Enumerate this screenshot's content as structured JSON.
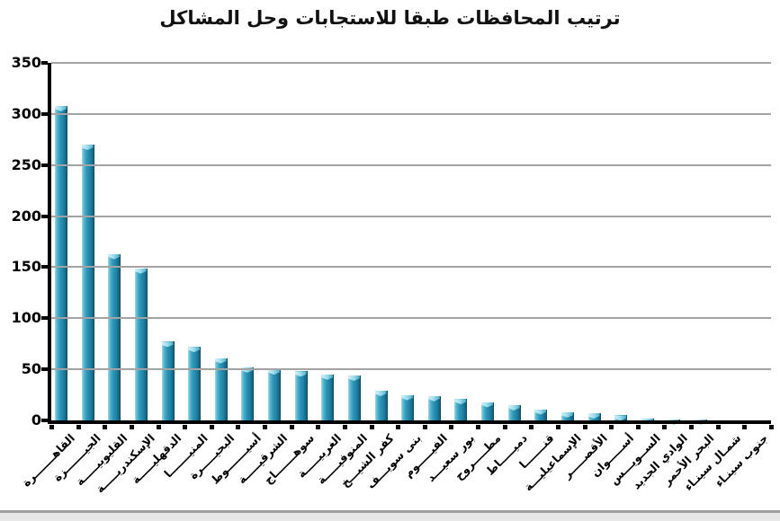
{
  "title": "ترتيب المحافظات طبقا  للاستجابات وحل المشاكل",
  "colors": {
    "bar_main": "#2e97ba",
    "bar_highlight": "#a5dcea",
    "bar_shadow": "#145f7a",
    "gridline": "#a3a3a3",
    "axis": "#000000",
    "title_text": "#111111",
    "background": "#ffffff",
    "bottom_divider": "#9f9f9f"
  },
  "chart_data": {
    "type": "bar",
    "title": "ترتيب المحافظات طبقا  للاستجابات وحل المشاكل",
    "xlabel": "",
    "ylabel": "",
    "ylim": [
      0,
      350
    ],
    "yticks": [
      0,
      50,
      100,
      150,
      200,
      250,
      300,
      350
    ],
    "grid": true,
    "legend_position": "none",
    "categories": [
      "القاهـــــــرة",
      "الجيـــــــزة",
      "القليوبيـــــة",
      "الإسكندريـــــة",
      "الدقهليـــــة",
      "المنيـــــــا",
      "البحيـــــرة",
      "أسيـــــــوط",
      "الشرقيـــــة",
      "سوهـــــــاج",
      "الغربيـــــة",
      "المنوفيـــــة",
      "كفر الشيـــخ",
      "بنى سويـــف",
      "الفيـــــوم",
      "بور سعيـــد",
      "مطـــــروح",
      "دميـــــاط",
      "قنـــــــا",
      "الإسماعيليـــة",
      "الأقصـــــر",
      "أســـــوان",
      "الســويـــس",
      "الوادي الجديد",
      "البحر الأحمر",
      "شمـال سينـاء",
      "جنوب سينـاء"
    ],
    "values": [
      308,
      270,
      163,
      149,
      77,
      72,
      61,
      52,
      50,
      48,
      45,
      44,
      29,
      25,
      24,
      21,
      18,
      15,
      11,
      8,
      7,
      5,
      2,
      1,
      1,
      0,
      0
    ]
  }
}
